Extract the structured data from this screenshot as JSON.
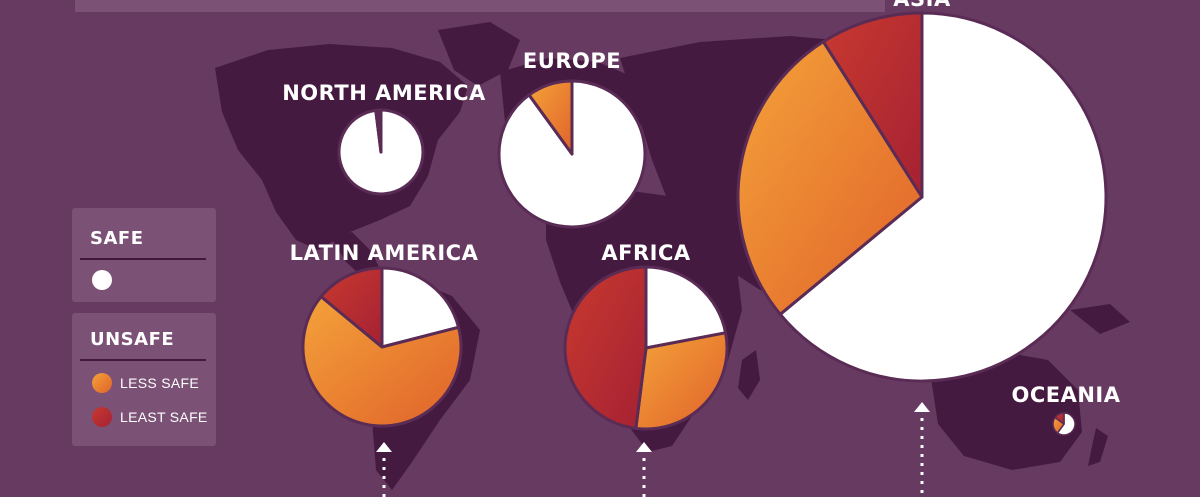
{
  "chart_data": {
    "type": "pie",
    "series_labels": {
      "safe": "SAFE",
      "less_safe": "LESS SAFE",
      "least_safe": "LEAST SAFE"
    },
    "colors": {
      "safe": "#ffffff",
      "less_safe": "#f08a2c",
      "least_safe": "#b82a2f",
      "background": "#673a62",
      "map": "#451a40"
    },
    "regions": [
      {
        "name": "NORTH AMERICA",
        "safe": 98,
        "less_safe": 1,
        "least_safe": 1
      },
      {
        "name": "EUROPE",
        "safe": 90,
        "less_safe": 10,
        "least_safe": 0
      },
      {
        "name": "LATIN AMERICA",
        "safe": 21,
        "less_safe": 65,
        "least_safe": 14
      },
      {
        "name": "AFRICA",
        "safe": 22,
        "less_safe": 30,
        "least_safe": 48
      },
      {
        "name": "ASIA",
        "safe": 64,
        "less_safe": 27,
        "least_safe": 9
      },
      {
        "name": "OCEANIA",
        "safe": 60,
        "less_safe": 25,
        "least_safe": 15
      }
    ]
  },
  "legend": {
    "safe_title": "SAFE",
    "unsafe_title": "UNSAFE",
    "less_safe_label": "LESS SAFE",
    "least_safe_label": "LEAST SAFE"
  }
}
